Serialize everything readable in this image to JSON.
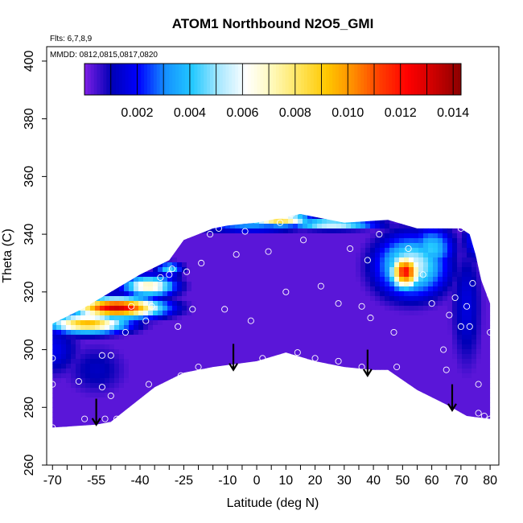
{
  "chart_data": {
    "type": "heatmap",
    "title": "ATOM1 Northbound N2O5_GMI",
    "subtitle_lines": [
      "Flts: 6,7,8,9",
      "MMDD: 0812,0815,0817,0820"
    ],
    "xlabel": "Latitude (deg N)",
    "ylabel": "Theta (C)",
    "xlim": [
      -72,
      83
    ],
    "ylim": [
      260,
      405
    ],
    "x_ticks": [
      -70,
      -65,
      -60,
      -55,
      -50,
      -45,
      -40,
      -35,
      -30,
      -25,
      -20,
      -15,
      -10,
      -5,
      0,
      5,
      10,
      15,
      20,
      25,
      30,
      35,
      40,
      45,
      50,
      55,
      60,
      65,
      70,
      75,
      80
    ],
    "x_tick_labels": [
      "-70",
      "-55",
      "-40",
      "-25",
      "-10",
      "0",
      "10",
      "20",
      "30",
      "40",
      "50",
      "60",
      "70",
      "80"
    ],
    "x_tick_label_values": [
      -70,
      -55,
      -40,
      -25,
      -10,
      0,
      10,
      20,
      30,
      40,
      50,
      60,
      70,
      80
    ],
    "y_ticks": [
      260,
      280,
      300,
      320,
      340,
      360,
      380,
      400
    ],
    "y_tick_labels": [
      "260",
      "280",
      "300",
      "320",
      "340",
      "360",
      "380",
      "400"
    ],
    "colorbar": {
      "range": [
        0,
        0.0143
      ],
      "tick_values": [
        0.002,
        0.004,
        0.006,
        0.008,
        0.01,
        0.012,
        0.014
      ],
      "tick_labels": [
        "0.002",
        "0.004",
        "0.006",
        "0.008",
        "0.010",
        "0.012",
        "0.014"
      ],
      "colors": [
        "#7f1fe6",
        "#0000b5",
        "#0000ff",
        "#1490ff",
        "#22c8ff",
        "#a8e8ff",
        "#ffffff",
        "#fff9b8",
        "#ffe45a",
        "#ffc800",
        "#ff8c00",
        "#ff3c00",
        "#ff0000",
        "#cc0000",
        "#8a0000"
      ]
    },
    "field": {
      "bottom_boundary": [
        [
          -70,
          273
        ],
        [
          -55,
          274
        ],
        [
          -50,
          275
        ],
        [
          -45,
          279
        ],
        [
          -35,
          287
        ],
        [
          -25,
          292
        ],
        [
          -15,
          294
        ],
        [
          0,
          296
        ],
        [
          10,
          299
        ],
        [
          20,
          296
        ],
        [
          30,
          294
        ],
        [
          40,
          293
        ],
        [
          45,
          293
        ],
        [
          55,
          286
        ],
        [
          65,
          281
        ],
        [
          72,
          277
        ],
        [
          80,
          276
        ]
      ],
      "top_boundary": [
        [
          -70,
          309
        ],
        [
          -60,
          314
        ],
        [
          -50,
          320
        ],
        [
          -40,
          326
        ],
        [
          -30,
          331
        ],
        [
          -25,
          338
        ],
        [
          -15,
          342
        ],
        [
          -10,
          343
        ],
        [
          0,
          344
        ],
        [
          10,
          346
        ],
        [
          15,
          347
        ],
        [
          20,
          346
        ],
        [
          30,
          344
        ],
        [
          45,
          345
        ],
        [
          55,
          342
        ],
        [
          65,
          342
        ],
        [
          70,
          342
        ],
        [
          73,
          340
        ],
        [
          75,
          333
        ],
        [
          77,
          324
        ],
        [
          80,
          316
        ],
        [
          80,
          276
        ]
      ],
      "background_value": 0.0003,
      "blobs": [
        {
          "x": -48,
          "y": 314.5,
          "sx": 10,
          "sy": 2.3,
          "value": 0.0132
        },
        {
          "x": -58,
          "y": 309,
          "sx": 9,
          "sy": 2.2,
          "value": 0.0095
        },
        {
          "x": -37,
          "y": 322,
          "sx": 6,
          "sy": 2.4,
          "value": 0.0072
        },
        {
          "x": -30,
          "y": 328,
          "sx": 3,
          "sy": 1.5,
          "value": 0.0045
        },
        {
          "x": 8,
          "y": 345,
          "sx": 7,
          "sy": 1.5,
          "value": 0.0088
        },
        {
          "x": 26,
          "y": 343.5,
          "sx": 10,
          "sy": 1.2,
          "value": 0.0065
        },
        {
          "x": -2,
          "y": 342.5,
          "sx": 12,
          "sy": 1.2,
          "value": 0.0032
        },
        {
          "x": 51,
          "y": 327,
          "sx": 3.5,
          "sy": 4,
          "value": 0.0122
        },
        {
          "x": 53,
          "y": 329,
          "sx": 8,
          "sy": 7,
          "value": 0.0058
        },
        {
          "x": 60,
          "y": 335,
          "sx": 5,
          "sy": 5,
          "value": 0.0042
        },
        {
          "x": -70,
          "y": 300,
          "sx": 6,
          "sy": 6,
          "value": 0.0018
        },
        {
          "x": -55,
          "y": 293,
          "sx": 7,
          "sy": 6,
          "value": 0.0012
        },
        {
          "x": 72,
          "y": 315,
          "sx": 3.5,
          "sy": 14,
          "value": 0.0016
        },
        {
          "x": 75,
          "y": 338,
          "sx": 3,
          "sy": 5,
          "value": 0.0022
        }
      ]
    },
    "sample_points": [
      [
        -70,
        297
      ],
      [
        -70,
        288
      ],
      [
        -70,
        273
      ],
      [
        -66,
        272
      ],
      [
        -61,
        289
      ],
      [
        -59,
        276
      ],
      [
        -53,
        298
      ],
      [
        -53,
        287
      ],
      [
        -52,
        276
      ],
      [
        -50,
        298
      ],
      [
        -50,
        284
      ],
      [
        -48,
        276
      ],
      [
        -45,
        306
      ],
      [
        -43,
        315
      ],
      [
        -38,
        310
      ],
      [
        -37,
        288
      ],
      [
        -36,
        315
      ],
      [
        -33,
        325
      ],
      [
        -30,
        326
      ],
      [
        -29,
        328
      ],
      [
        -27,
        308
      ],
      [
        -26,
        291
      ],
      [
        -24,
        327
      ],
      [
        -22,
        314
      ],
      [
        -20,
        294
      ],
      [
        -19,
        330
      ],
      [
        -16,
        340
      ],
      [
        -13,
        342
      ],
      [
        -11,
        314
      ],
      [
        -7,
        333
      ],
      [
        -4,
        341
      ],
      [
        -2,
        310
      ],
      [
        2,
        297
      ],
      [
        4,
        334
      ],
      [
        8,
        344
      ],
      [
        10,
        320
      ],
      [
        12,
        347
      ],
      [
        14,
        299
      ],
      [
        16,
        338
      ],
      [
        20,
        297
      ],
      [
        22,
        322
      ],
      [
        28,
        316
      ],
      [
        28,
        296
      ],
      [
        32,
        335
      ],
      [
        36,
        315
      ],
      [
        36,
        294
      ],
      [
        38,
        331
      ],
      [
        39,
        311
      ],
      [
        42,
        340
      ],
      [
        47,
        306
      ],
      [
        48,
        294
      ],
      [
        52,
        335
      ],
      [
        57,
        326
      ],
      [
        60,
        316
      ],
      [
        64,
        300
      ],
      [
        65,
        293
      ],
      [
        66,
        312
      ],
      [
        68,
        318
      ],
      [
        70,
        342
      ],
      [
        70,
        308
      ],
      [
        72,
        315
      ],
      [
        73,
        308
      ],
      [
        74,
        323
      ],
      [
        76,
        288
      ],
      [
        76,
        278
      ],
      [
        78,
        277
      ],
      [
        80,
        319
      ],
      [
        80,
        306
      ],
      [
        80,
        276
      ]
    ],
    "arrows": [
      {
        "x": -55,
        "y_top": 283,
        "y_tip": 274
      },
      {
        "x": -8,
        "y_top": 302,
        "y_tip": 293
      },
      {
        "x": 38,
        "y_top": 300,
        "y_tip": 291
      },
      {
        "x": 67,
        "y_top": 288,
        "y_tip": 279
      }
    ]
  }
}
